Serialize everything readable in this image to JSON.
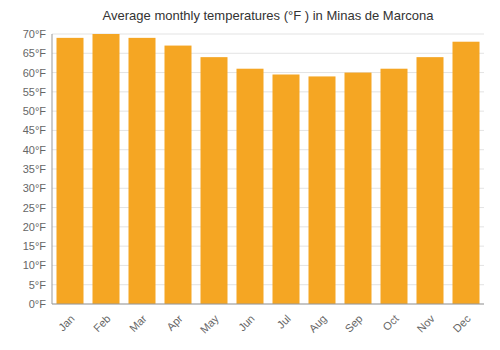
{
  "chart_data": {
    "type": "bar",
    "title": "Average monthly temperatures (°F ) in Minas de Marcona",
    "categories": [
      "Jan",
      "Feb",
      "Mar",
      "Apr",
      "May",
      "Jun",
      "Jul",
      "Aug",
      "Sep",
      "Oct",
      "Nov",
      "Dec"
    ],
    "values": [
      69,
      70,
      69,
      67,
      64,
      61,
      59.5,
      59,
      60,
      61,
      64,
      68
    ],
    "color": "#F5A623",
    "ylim": [
      0,
      70
    ],
    "yticks": [
      {
        "value": 0,
        "label": "0°F"
      },
      {
        "value": 5,
        "label": "5°F"
      },
      {
        "value": 10,
        "label": "10°F"
      },
      {
        "value": 15,
        "label": "15°F"
      },
      {
        "value": 20,
        "label": "20°F"
      },
      {
        "value": 25,
        "label": "25°F"
      },
      {
        "value": 30,
        "label": "30°F"
      },
      {
        "value": 35,
        "label": "35°F"
      },
      {
        "value": 40,
        "label": "40°F"
      },
      {
        "value": 45,
        "label": "45°F"
      },
      {
        "value": 50,
        "label": "50°F"
      },
      {
        "value": 55,
        "label": "55°F"
      },
      {
        "value": 60,
        "label": "60°F"
      },
      {
        "value": 65,
        "label": "65°F"
      },
      {
        "value": 70,
        "label": "70°F"
      }
    ],
    "grid": true
  }
}
